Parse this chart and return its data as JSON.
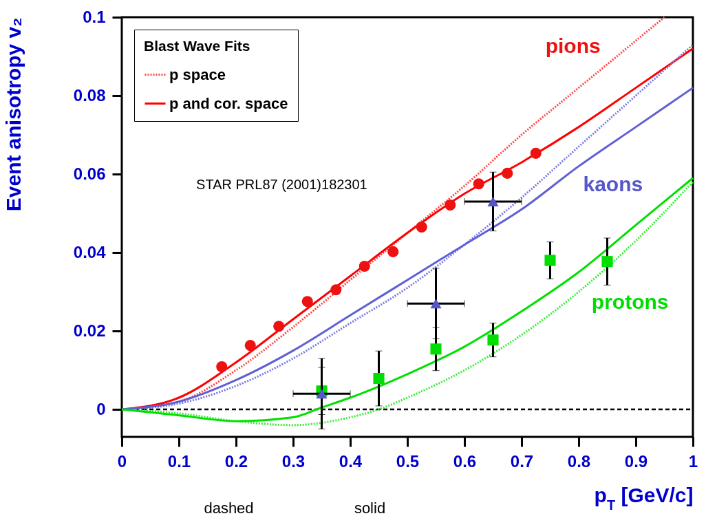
{
  "chart_data": {
    "type": "line",
    "ylabel": "Event anisotropy  v₂",
    "xlabel": "p$_{T}$ [GeV/c]",
    "legend_title": "Blast Wave Fits",
    "legend": "top left",
    "grid": false,
    "xlim": [
      0,
      1
    ],
    "ylim": [
      -0.007,
      0.1
    ],
    "xticks": [
      0,
      0.1,
      0.2,
      0.3,
      0.4,
      0.5,
      0.6,
      0.7,
      0.8,
      0.9,
      1
    ],
    "yticks": [
      0,
      0.02,
      0.04,
      0.06,
      0.08,
      0.1
    ],
    "ref_lines": [
      {
        "axis": "y",
        "value": 0,
        "line_style": "dashed",
        "color": "#000000"
      }
    ],
    "annotations": [
      "STAR  PRL87 (2001)182301",
      "dashed",
      "solid"
    ],
    "series": [
      {
        "type": "line",
        "name": "p space",
        "color": "#ff4444",
        "line_style": "dotted",
        "x": [
          0,
          0.1,
          0.2,
          0.3,
          0.4,
          0.5,
          0.6,
          0.7,
          0.8,
          0.9,
          0.95
        ],
        "values": [
          0,
          0.002,
          0.01,
          0.021,
          0.033,
          0.045,
          0.057,
          0.07,
          0.082,
          0.094,
          0.1
        ]
      },
      {
        "type": "line",
        "name": "p and cor. space",
        "color": "#ff0000",
        "line_style": "solid",
        "x": [
          0,
          0.1,
          0.2,
          0.3,
          0.4,
          0.5,
          0.6,
          0.7,
          0.8,
          0.9,
          1.0
        ],
        "values": [
          0,
          0.003,
          0.012,
          0.023,
          0.034,
          0.045,
          0.055,
          0.063,
          0.072,
          0.082,
          0.092
        ]
      },
      {
        "type": "line",
        "color": "#7777e0",
        "line_style": "dotted",
        "x": [
          0,
          0.1,
          0.2,
          0.3,
          0.4,
          0.5,
          0.6,
          0.7,
          0.8,
          0.9,
          1.0
        ],
        "values": [
          0,
          0.0015,
          0.006,
          0.013,
          0.022,
          0.031,
          0.042,
          0.054,
          0.067,
          0.08,
          0.093
        ]
      },
      {
        "type": "line",
        "color": "#5f5fd6",
        "line_style": "solid",
        "x": [
          0,
          0.1,
          0.2,
          0.3,
          0.4,
          0.5,
          0.6,
          0.7,
          0.8,
          0.9,
          1.0
        ],
        "values": [
          0,
          0.002,
          0.0075,
          0.015,
          0.024,
          0.033,
          0.042,
          0.051,
          0.062,
          0.072,
          0.082
        ]
      },
      {
        "type": "line",
        "color": "#33ee33",
        "line_style": "dotted",
        "x": [
          0,
          0.1,
          0.2,
          0.3,
          0.4,
          0.45,
          0.5,
          0.6,
          0.7,
          0.8,
          0.9,
          1.0
        ],
        "values": [
          0,
          -0.001,
          -0.003,
          -0.004,
          -0.002,
          0.0,
          0.003,
          0.01,
          0.019,
          0.03,
          0.043,
          0.058
        ]
      },
      {
        "type": "line",
        "color": "#00e000",
        "line_style": "solid",
        "x": [
          0,
          0.1,
          0.2,
          0.3,
          0.35,
          0.4,
          0.5,
          0.6,
          0.7,
          0.8,
          0.9,
          1.0
        ],
        "values": [
          0,
          -0.0015,
          -0.003,
          -0.002,
          0.0005,
          0.003,
          0.009,
          0.016,
          0.025,
          0.035,
          0.047,
          0.059
        ]
      },
      {
        "type": "scatter",
        "name": "pions",
        "color": "#ee1111",
        "marker": "circle",
        "x": [
          0.175,
          0.225,
          0.275,
          0.325,
          0.375,
          0.425,
          0.475,
          0.525,
          0.575,
          0.625,
          0.675,
          0.725
        ],
        "values": [
          0.0109,
          0.0163,
          0.0212,
          0.0275,
          0.0305,
          0.0365,
          0.0402,
          0.0465,
          0.0521,
          0.0575,
          0.0602,
          0.0653
        ]
      },
      {
        "type": "scatter",
        "name": "protons",
        "color": "#00dd00",
        "marker": "square",
        "x": [
          0.35,
          0.45,
          0.55,
          0.65,
          0.75,
          0.85
        ],
        "values": [
          0.0047,
          0.0079,
          0.0154,
          0.0177,
          0.038,
          0.0377
        ],
        "errors": [
          0.006,
          0.007,
          0.0055,
          0.0043,
          0.0047,
          0.006
        ]
      },
      {
        "type": "scatter",
        "name": "kaons",
        "color": "#5555cc",
        "marker": "triangle",
        "x": [
          0.35,
          0.55,
          0.65
        ],
        "values": [
          0.004,
          0.027,
          0.053
        ],
        "errors": [
          0.009,
          0.009,
          0.0075
        ],
        "xerrors": [
          0.05,
          0.05,
          0.05
        ]
      }
    ]
  }
}
